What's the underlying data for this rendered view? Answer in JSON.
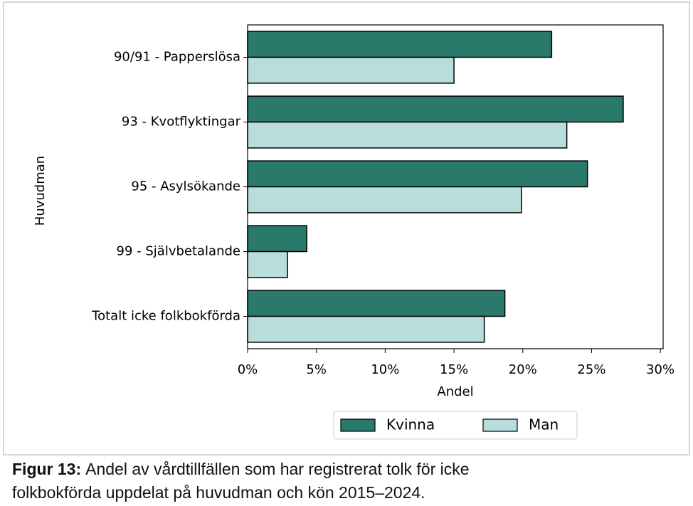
{
  "chart_data": {
    "type": "barh",
    "categories": [
      "90/91 - Papperslösa",
      "93 - Kvotflyktingar",
      "95 - Asylsökande",
      "99 - Självbetalande",
      "Totalt icke folkbokförda"
    ],
    "series": [
      {
        "name": "Kvinna",
        "color": "#2a7a6c",
        "values": [
          22.1,
          27.3,
          24.7,
          4.3,
          18.7
        ]
      },
      {
        "name": "Man",
        "color": "#b9dcdc",
        "values": [
          15.0,
          23.2,
          19.9,
          2.9,
          17.2
        ]
      }
    ],
    "xlabel": "Andel",
    "ylabel": "Huvudman",
    "xlim": [
      0,
      30.2
    ],
    "xticks": [
      {
        "value": 0,
        "label": "0%"
      },
      {
        "value": 5,
        "label": "5%"
      },
      {
        "value": 10,
        "label": "10%"
      },
      {
        "value": 15,
        "label": "15%"
      },
      {
        "value": 20,
        "label": "20%"
      },
      {
        "value": 25,
        "label": "25%"
      },
      {
        "value": 30,
        "label": "30%"
      }
    ],
    "legend": "bottom"
  },
  "caption": {
    "label": "Figur 13:",
    "lines": [
      "Andel av vårdtillfällen som har registrerat tolk för icke",
      "folkbokförda uppdelat på huvudman och kön 2015–2024."
    ]
  }
}
